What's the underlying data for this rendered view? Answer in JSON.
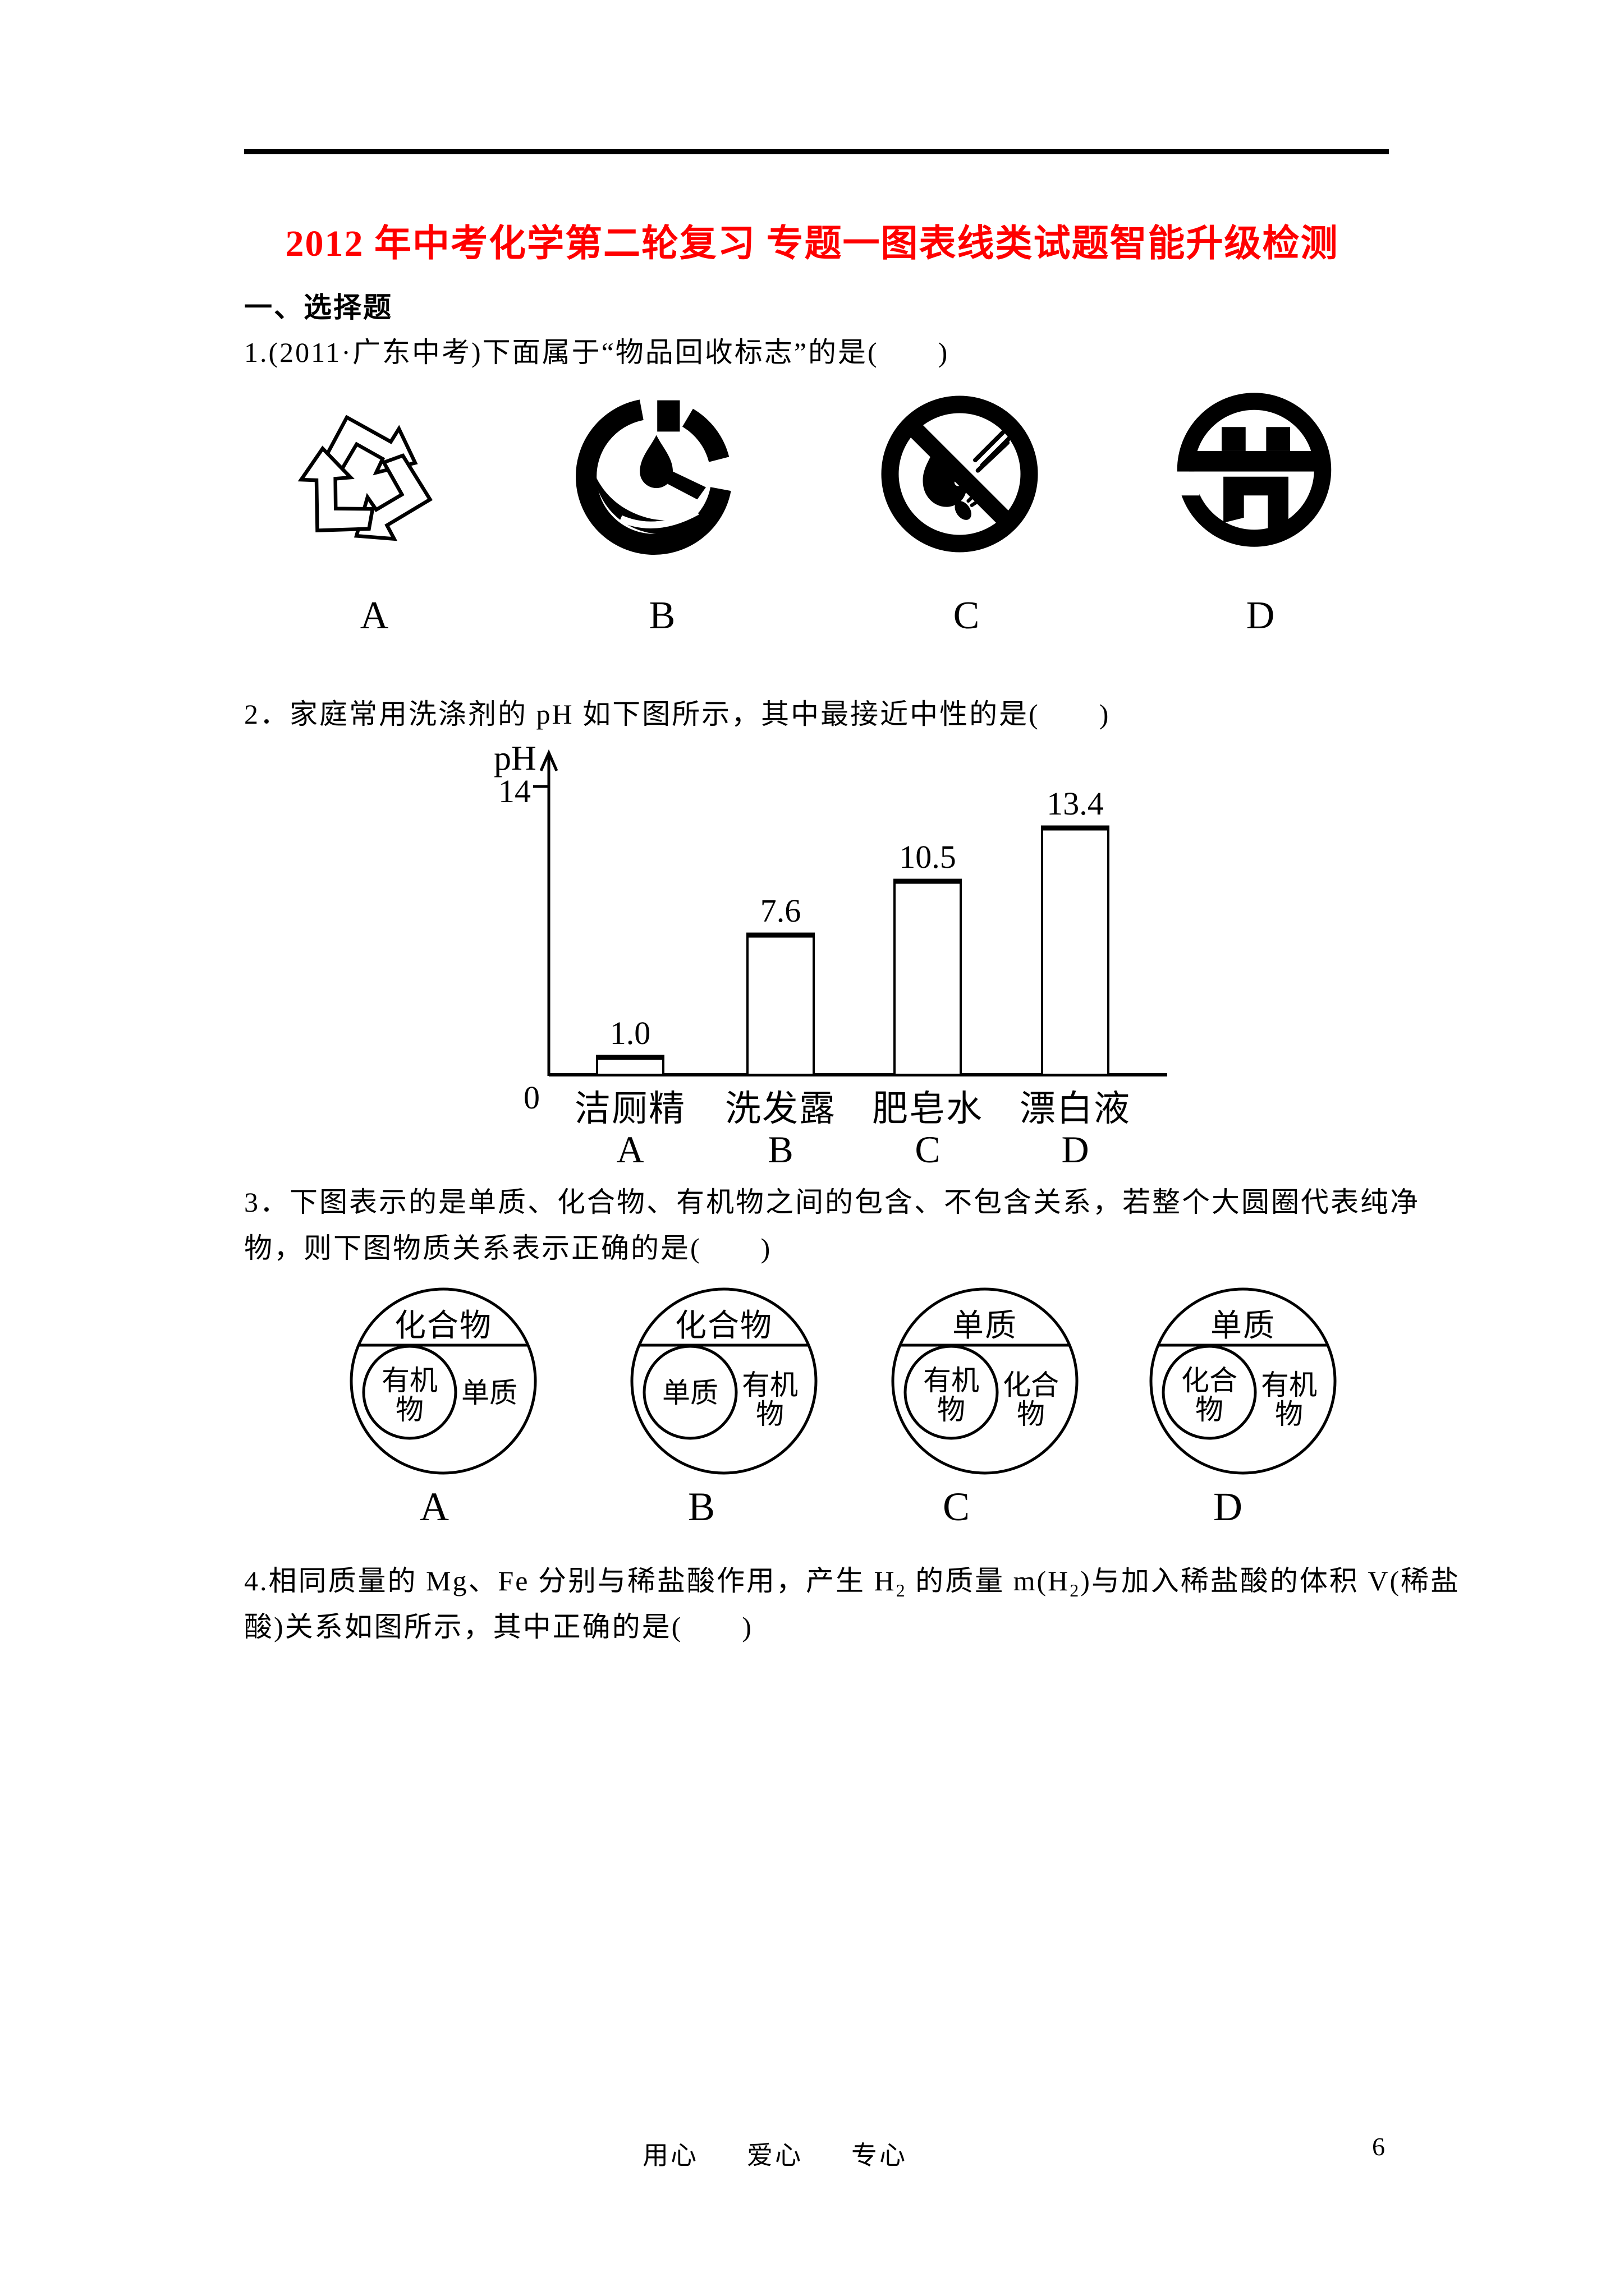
{
  "page": {
    "background": "#ffffff",
    "number": "6",
    "footer_words": [
      "用心",
      "爱心",
      "专心"
    ]
  },
  "header": {
    "title": "2012 年中考化学第二轮复习 专题一图表线类试题智能升级检测",
    "title_color": "#ff0000"
  },
  "section": {
    "heading": "一、选择题"
  },
  "questions": {
    "q1": {
      "text": "1.(2011·广东中考)下面属于“物品回收标志”的是(　　)",
      "options": [
        {
          "label": "A",
          "icon": "recycling-symbol-icon"
        },
        {
          "label": "B",
          "icon": "water-saving-symbol-icon"
        },
        {
          "label": "C",
          "icon": "no-open-flame-symbol-icon"
        },
        {
          "label": "D",
          "icon": "energy-saving-symbol-icon"
        }
      ]
    },
    "q2": {
      "text": "2．家庭常用洗涤剂的 pH 如下图所示，其中最接近中性的是(　　)"
    },
    "q3": {
      "line1": "3．下图表示的是单质、化合物、有机物之间的包含、不包含关系，若整个大圆圈代表纯净",
      "line2": "物，则下图物质关系表示正确的是(　　)"
    },
    "q4": {
      "seg1": "4.相同质量的 Mg、Fe 分别与稀盐酸作用，产生 H",
      "sub1": "2",
      "seg2": " 的质量 m(H",
      "sub2": "2",
      "seg3": ")与加入稀盐酸的体积 V(稀盐",
      "line2": "酸)关系如图所示，其中正确的是(　　)"
    }
  },
  "chart_data": {
    "type": "bar",
    "title": "",
    "xlabel": "",
    "ylabel": "pH",
    "ylim": [
      0,
      14
    ],
    "yticks": [
      "0",
      "14"
    ],
    "grid": false,
    "legend": false,
    "categories": [
      "洁厕精",
      "洗发露",
      "肥皂水",
      "漂白液"
    ],
    "option_letters": [
      "A",
      "B",
      "C",
      "D"
    ],
    "values": [
      1.0,
      7.6,
      10.5,
      13.4
    ],
    "value_labels": [
      "1.0",
      "7.6",
      "10.5",
      "13.4"
    ],
    "bar_fill": "#ffffff",
    "bar_border": "#000000"
  },
  "venn": {
    "diagrams": [
      {
        "letter": "A",
        "outer_top": "化合物",
        "inner_line1": "有机",
        "inner_line2": "物",
        "right_line1": "单质",
        "right_line2": ""
      },
      {
        "letter": "B",
        "outer_top": "化合物",
        "inner_line1": "单质",
        "inner_line2": "",
        "right_line1": "有机",
        "right_line2": "物"
      },
      {
        "letter": "C",
        "outer_top": "单质",
        "inner_line1": "有机",
        "inner_line2": "物",
        "right_line1": "化合",
        "right_line2": "物"
      },
      {
        "letter": "D",
        "outer_top": "单质",
        "inner_line1": "化合",
        "inner_line2": "物",
        "right_line1": "有机",
        "right_line2": "物"
      }
    ]
  }
}
